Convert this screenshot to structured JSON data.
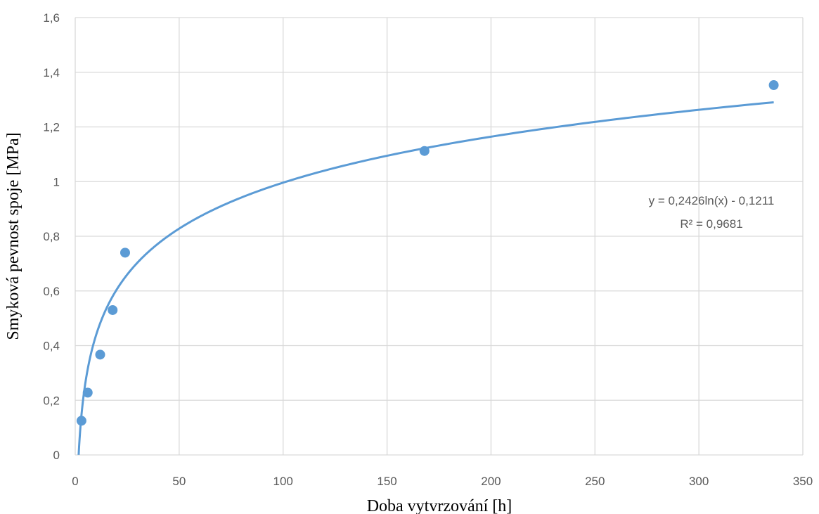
{
  "chart_data": {
    "type": "scatter",
    "title": "",
    "xlabel": "Doba vytvrzování [h]",
    "ylabel": "Smyková pevnost spoje [MPa]",
    "xlim": [
      0,
      350
    ],
    "ylim": [
      0,
      1.6
    ],
    "xticks": [
      0,
      50,
      100,
      150,
      200,
      250,
      300,
      350
    ],
    "xtick_labels": [
      "0",
      "50",
      "100",
      "150",
      "200",
      "250",
      "300",
      "350"
    ],
    "yticks": [
      0,
      0.2,
      0.4,
      0.6,
      0.8,
      1.0,
      1.2,
      1.4,
      1.6
    ],
    "ytick_labels": [
      "0",
      "0,2",
      "0,4",
      "0,6",
      "0,8",
      "1",
      "1,2",
      "1,4",
      "1,6"
    ],
    "grid": true,
    "legend": "none",
    "series": [
      {
        "color": "#5b9bd5",
        "points": [
          {
            "x": 3,
            "y": 0.125
          },
          {
            "x": 6,
            "y": 0.228
          },
          {
            "x": 12,
            "y": 0.367
          },
          {
            "x": 18,
            "y": 0.53
          },
          {
            "x": 24,
            "y": 0.74
          },
          {
            "x": 168,
            "y": 1.112
          },
          {
            "x": 336,
            "y": 1.353
          }
        ]
      }
    ],
    "trendline": {
      "type": "logarithmic",
      "a": 0.2426,
      "b": -0.1211,
      "x_range": [
        1.65,
        336
      ],
      "color": "#5b9bd5",
      "equation_label": "y = 0,2426ln(x) - 0,1211",
      "r2_label": "R² = 0,9681"
    },
    "grid_color": "#d9d9d9"
  }
}
